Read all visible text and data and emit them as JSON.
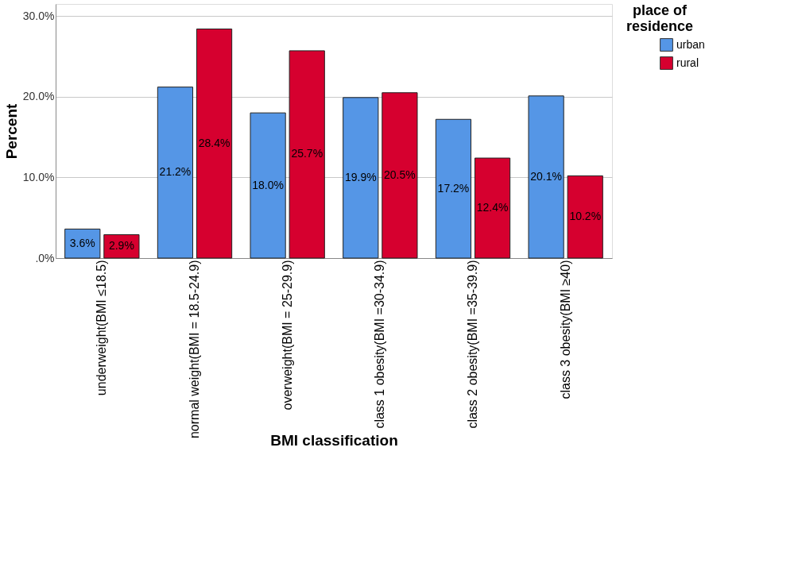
{
  "chart_data": {
    "type": "bar",
    "xlabel": "BMI classification",
    "ylabel": "Percent",
    "legend_title": "place of residence",
    "categories": [
      "underweight(BMI ≤18.5)",
      "normal weight(BMI = 18.5-24.9)",
      "overweight(BMI = 25-29.9)",
      "class 1 obesity(BMI =30-34.9)",
      "class 2 obesity(BMI =35-39.9)",
      "class 3 obesity(BMI ≥40)"
    ],
    "series": [
      {
        "name": "urban",
        "color": "#5596e6",
        "values": [
          3.6,
          21.2,
          18.0,
          19.9,
          17.2,
          20.1
        ],
        "value_labels": [
          "3.6%",
          "21.2%",
          "18.0%",
          "19.9%",
          "17.2%",
          "20.1%"
        ]
      },
      {
        "name": "rural",
        "color": "#d6002f",
        "values": [
          2.9,
          28.4,
          25.7,
          20.5,
          12.4,
          10.2
        ],
        "value_labels": [
          "2.9%",
          "28.4%",
          "25.7%",
          "20.5%",
          "12.4%",
          "10.2%"
        ]
      }
    ],
    "ylim": [
      0,
      31.5
    ],
    "yticks": [
      {
        "value": 0,
        "label": ".0%"
      },
      {
        "value": 10,
        "label": "10.0%"
      },
      {
        "value": 20,
        "label": "20.0%"
      },
      {
        "value": 30,
        "label": "30.0%"
      }
    ],
    "grid": "y",
    "legend": "top right"
  }
}
